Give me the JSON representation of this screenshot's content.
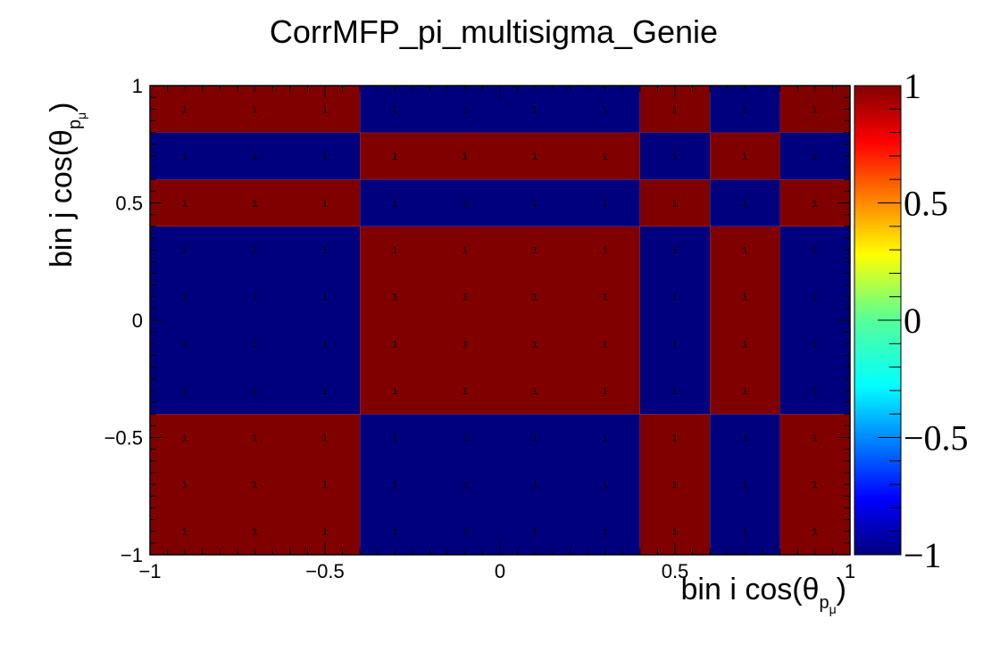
{
  "chart_data": {
    "type": "heatmap",
    "title": "CorrMFP_pi_multisigma_Genie",
    "xlabel": "bin i cos(θ",
    "ylabel": "bin j cos(θ",
    "axis_sub": "p",
    "axis_subsub": "μ",
    "axis_close": ")",
    "xlim": [
      -1,
      1
    ],
    "ylim": [
      -1,
      1
    ],
    "x_ticks": [
      "−1",
      "−0.5",
      "0",
      "0.5",
      "1"
    ],
    "y_ticks": [
      "−1",
      "−0.5",
      "0",
      "0.5",
      "1"
    ],
    "x_edges": [
      -1,
      -0.4,
      0.4,
      0.6,
      0.8,
      1
    ],
    "y_edges": [
      -1,
      -0.4,
      0.4,
      0.6,
      0.8,
      1
    ],
    "z": [
      [
        1,
        -1,
        1,
        -1,
        1
      ],
      [
        -1,
        1,
        -1,
        1,
        -1
      ],
      [
        1,
        -1,
        1,
        -1,
        1
      ],
      [
        -1,
        1,
        -1,
        1,
        -1
      ],
      [
        1,
        -1,
        1,
        -1,
        1
      ]
    ],
    "zlim": [
      -1,
      1
    ],
    "colorbar_ticks": [
      "−1",
      "−0.5",
      "0",
      "0.5",
      "1"
    ],
    "colorbar_tick_values": [
      -1,
      -0.5,
      0,
      0.5,
      1
    ],
    "cell_label_text": "1",
    "label_x": [
      -0.9,
      -0.7,
      -0.5,
      -0.3,
      -0.1,
      0.1,
      0.3,
      0.5,
      0.7,
      0.9
    ],
    "label_y": [
      -0.9,
      -0.7,
      -0.5,
      -0.3,
      -0.1,
      0.1,
      0.3,
      0.5,
      0.7,
      0.9
    ],
    "colors": {
      "high": "#800000",
      "low": "#00007f"
    }
  }
}
